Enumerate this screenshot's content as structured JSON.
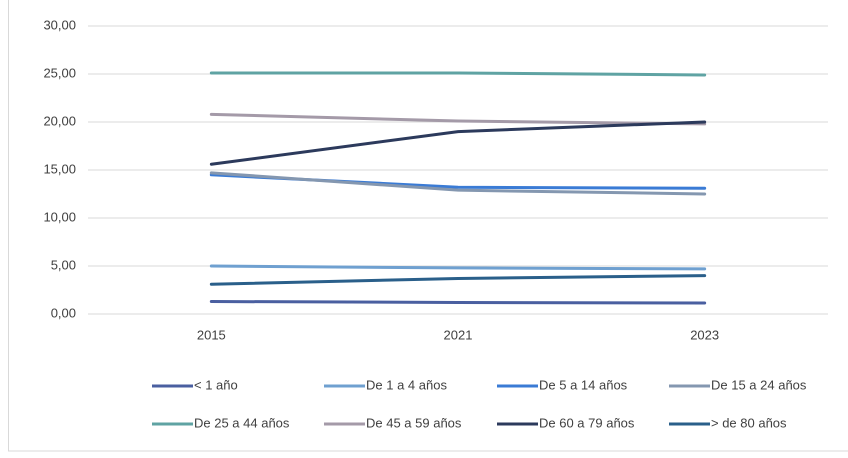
{
  "chart_data": {
    "type": "line",
    "categories": [
      "2015",
      "2021",
      "2023"
    ],
    "series": [
      {
        "name": "< 1 año",
        "color": "#4a5fa0",
        "values": [
          1.3,
          1.2,
          1.15
        ]
      },
      {
        "name": "De 1 a 4 años",
        "color": "#6fa0d0",
        "values": [
          5.0,
          4.8,
          4.7
        ]
      },
      {
        "name": "De 5 a 14 años",
        "color": "#3a7bd5",
        "values": [
          14.5,
          13.2,
          13.1
        ]
      },
      {
        "name": "De 15 a 24 años",
        "color": "#8497b0",
        "values": [
          14.7,
          12.9,
          12.5
        ]
      },
      {
        "name": "De 25 a 44 años",
        "color": "#5fa3a3",
        "values": [
          25.1,
          25.1,
          24.9
        ]
      },
      {
        "name": "De 45 a 59 años",
        "color": "#a49aa8",
        "values": [
          20.8,
          20.1,
          19.8
        ]
      },
      {
        "name": "De 60 a 79 años",
        "color": "#2c3a5c",
        "values": [
          15.6,
          19.0,
          20.0
        ]
      },
      {
        "name": "> de 80 años",
        "color": "#2a5f8a",
        "values": [
          3.1,
          3.7,
          4.0
        ]
      }
    ],
    "ylim": [
      0,
      30
    ],
    "yticks": [
      {
        "value": 0,
        "label": "0,00"
      },
      {
        "value": 5,
        "label": "5,00"
      },
      {
        "value": 10,
        "label": "10,00"
      },
      {
        "value": 15,
        "label": "15,00"
      },
      {
        "value": 20,
        "label": "20,00"
      },
      {
        "value": 25,
        "label": "25,00"
      },
      {
        "value": 30,
        "label": "30,00"
      }
    ],
    "grid": true,
    "legend": "bottom"
  }
}
